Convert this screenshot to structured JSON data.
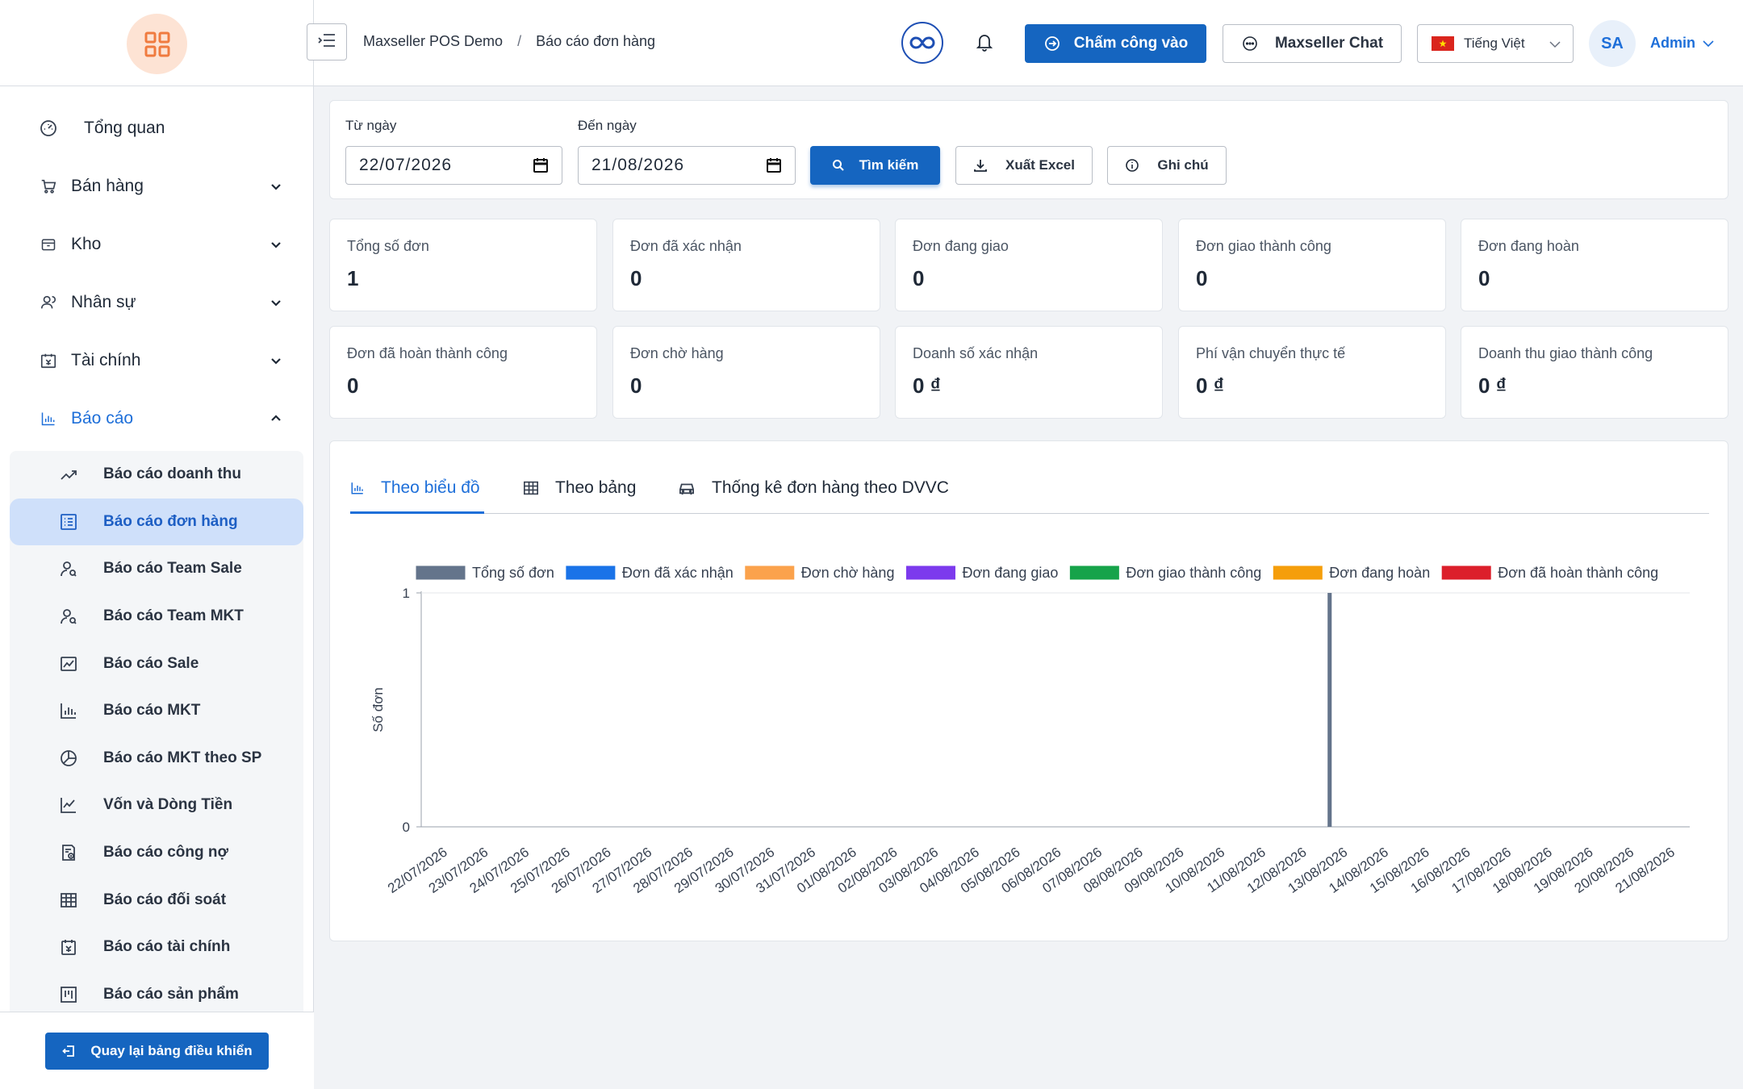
{
  "sidebar": {
    "nav": [
      {
        "label": "Tổng quan",
        "icon": "gauge-icon"
      },
      {
        "label": "Bán hàng",
        "icon": "cart-icon"
      },
      {
        "label": "Kho",
        "icon": "box-icon"
      },
      {
        "label": "Nhân sự",
        "icon": "users-icon"
      },
      {
        "label": "Tài chính",
        "icon": "finance-icon"
      },
      {
        "label": "Báo cáo",
        "icon": "bar-chart-icon"
      }
    ],
    "report_items": [
      {
        "label": "Báo cáo doanh thu"
      },
      {
        "label": "Báo cáo đơn hàng"
      },
      {
        "label": "Báo cáo Team Sale"
      },
      {
        "label": "Báo cáo Team MKT"
      },
      {
        "label": "Báo cáo Sale"
      },
      {
        "label": "Báo cáo MKT"
      },
      {
        "label": "Báo cáo MKT theo SP"
      },
      {
        "label": "Vốn và Dòng Tiền"
      },
      {
        "label": "Báo cáo công nợ"
      },
      {
        "label": "Báo cáo đối soát"
      },
      {
        "label": "Báo cáo tài chính"
      },
      {
        "label": "Báo cáo sản phẩm"
      }
    ],
    "back_label": "Quay lại bảng điều khiển"
  },
  "header": {
    "crumb_root": "Maxseller POS Demo",
    "crumb_sep": "/",
    "crumb_current": "Báo cáo đơn hàng",
    "checkin_label": "Chấm công vào",
    "chat_label": "Maxseller Chat",
    "language": "Tiếng Việt",
    "avatar_initials": "SA",
    "user": "Admin"
  },
  "filter": {
    "from_label": "Từ ngày",
    "from_value": "22/07/2026",
    "to_label": "Đến ngày",
    "to_value": "21/08/2026",
    "search_label": "Tìm kiếm",
    "export_label": "Xuất Excel",
    "note_label": "Ghi chú"
  },
  "stats": [
    {
      "label": "Tổng số đơn",
      "value": "1"
    },
    {
      "label": "Đơn đã xác nhận",
      "value": "0"
    },
    {
      "label": "Đơn đang giao",
      "value": "0"
    },
    {
      "label": "Đơn giao thành công",
      "value": "0"
    },
    {
      "label": "Đơn đang hoàn",
      "value": "0"
    },
    {
      "label": "Đơn đã hoàn thành công",
      "value": "0"
    },
    {
      "label": "Đơn chờ hàng",
      "value": "0"
    },
    {
      "label": "Doanh số xác nhận",
      "value": "0 ₫"
    },
    {
      "label": "Phí vận chuyển thực tế",
      "value": "0 ₫"
    },
    {
      "label": "Doanh thu giao thành công",
      "value": "0 ₫"
    }
  ],
  "tabs": [
    {
      "label": "Theo biểu đồ",
      "active": true
    },
    {
      "label": "Theo bảng",
      "active": false
    },
    {
      "label": "Thống kê đơn hàng theo DVVC",
      "active": false
    }
  ],
  "chart_data": {
    "type": "bar",
    "ylabel": "Số đơn",
    "ylim": [
      0,
      1
    ],
    "yticks": [
      0,
      1
    ],
    "legend_position": "top",
    "categories": [
      "22/07/2026",
      "23/07/2026",
      "24/07/2026",
      "25/07/2026",
      "26/07/2026",
      "27/07/2026",
      "28/07/2026",
      "29/07/2026",
      "30/07/2026",
      "31/07/2026",
      "01/08/2026",
      "02/08/2026",
      "03/08/2026",
      "04/08/2026",
      "05/08/2026",
      "06/08/2026",
      "07/08/2026",
      "08/08/2026",
      "09/08/2026",
      "10/08/2026",
      "11/08/2026",
      "12/08/2026",
      "13/08/2026",
      "14/08/2026",
      "15/08/2026",
      "16/08/2026",
      "17/08/2026",
      "18/08/2026",
      "19/08/2026",
      "20/08/2026",
      "21/08/2026"
    ],
    "series": [
      {
        "name": "Tổng số đơn",
        "color": "#64748b",
        "values": [
          0,
          0,
          0,
          0,
          0,
          0,
          0,
          0,
          0,
          0,
          0,
          0,
          0,
          0,
          0,
          0,
          0,
          0,
          0,
          0,
          0,
          0,
          1,
          0,
          0,
          0,
          0,
          0,
          0,
          0,
          0
        ]
      },
      {
        "name": "Đơn đã xác nhận",
        "color": "#1a73e8",
        "values": [
          0,
          0,
          0,
          0,
          0,
          0,
          0,
          0,
          0,
          0,
          0,
          0,
          0,
          0,
          0,
          0,
          0,
          0,
          0,
          0,
          0,
          0,
          0,
          0,
          0,
          0,
          0,
          0,
          0,
          0,
          0
        ]
      },
      {
        "name": "Đơn chờ hàng",
        "color": "#fba24c",
        "values": [
          0,
          0,
          0,
          0,
          0,
          0,
          0,
          0,
          0,
          0,
          0,
          0,
          0,
          0,
          0,
          0,
          0,
          0,
          0,
          0,
          0,
          0,
          0,
          0,
          0,
          0,
          0,
          0,
          0,
          0,
          0
        ]
      },
      {
        "name": "Đơn đang giao",
        "color": "#7c3aed",
        "values": [
          0,
          0,
          0,
          0,
          0,
          0,
          0,
          0,
          0,
          0,
          0,
          0,
          0,
          0,
          0,
          0,
          0,
          0,
          0,
          0,
          0,
          0,
          0,
          0,
          0,
          0,
          0,
          0,
          0,
          0,
          0
        ]
      },
      {
        "name": "Đơn giao thành công",
        "color": "#16a34a",
        "values": [
          0,
          0,
          0,
          0,
          0,
          0,
          0,
          0,
          0,
          0,
          0,
          0,
          0,
          0,
          0,
          0,
          0,
          0,
          0,
          0,
          0,
          0,
          0,
          0,
          0,
          0,
          0,
          0,
          0,
          0,
          0
        ]
      },
      {
        "name": "Đơn đang hoàn",
        "color": "#f59e0b",
        "values": [
          0,
          0,
          0,
          0,
          0,
          0,
          0,
          0,
          0,
          0,
          0,
          0,
          0,
          0,
          0,
          0,
          0,
          0,
          0,
          0,
          0,
          0,
          0,
          0,
          0,
          0,
          0,
          0,
          0,
          0,
          0
        ]
      },
      {
        "name": "Đơn đã hoàn thành công",
        "color": "#dc1f2b",
        "values": [
          0,
          0,
          0,
          0,
          0,
          0,
          0,
          0,
          0,
          0,
          0,
          0,
          0,
          0,
          0,
          0,
          0,
          0,
          0,
          0,
          0,
          0,
          0,
          0,
          0,
          0,
          0,
          0,
          0,
          0,
          0
        ]
      }
    ]
  }
}
